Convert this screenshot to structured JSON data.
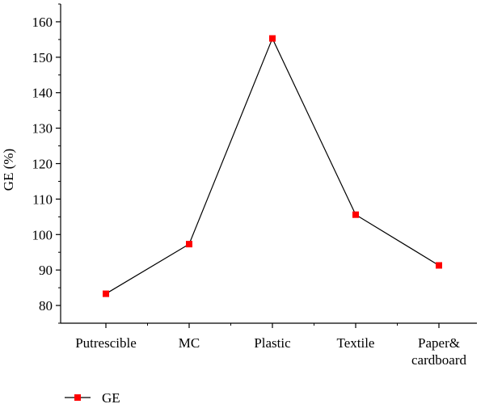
{
  "chart_data": {
    "type": "line",
    "categories": [
      "Putrescible",
      "MC",
      "Plastic",
      "Textile",
      "Paper&\ncardboard"
    ],
    "series": [
      {
        "name": "GE",
        "values": [
          83.3,
          97.3,
          155.3,
          105.6,
          91.3
        ],
        "color": "#ff0000",
        "line_color": "#000000",
        "marker": "square"
      }
    ],
    "xlabel": "",
    "ylabel": "GE (%)",
    "ylim": [
      75,
      165
    ],
    "yticks": [
      80,
      90,
      100,
      110,
      120,
      130,
      140,
      150,
      160
    ],
    "grid": false,
    "legend": {
      "position": "bottom-left",
      "entries": [
        "GE"
      ]
    }
  }
}
